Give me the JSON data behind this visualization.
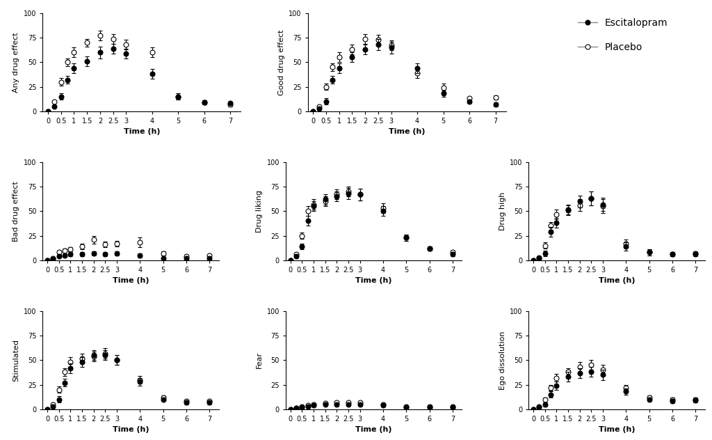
{
  "time": [
    0,
    0.25,
    0.5,
    0.75,
    1,
    1.5,
    2,
    2.5,
    3,
    4,
    5,
    6,
    7
  ],
  "panels": [
    {
      "ylabel": "Any drug effect",
      "escitalopram": [
        0,
        5,
        15,
        32,
        44,
        51,
        60,
        64,
        59,
        38,
        15,
        9,
        8
      ],
      "placebo": [
        0,
        10,
        30,
        50,
        60,
        70,
        77,
        74,
        68,
        60,
        15,
        9,
        7
      ],
      "esc_err": [
        0,
        1,
        3,
        4,
        5,
        5,
        6,
        5,
        5,
        5,
        3,
        2,
        2
      ],
      "plc_err": [
        0,
        1,
        4,
        4,
        5,
        4,
        5,
        5,
        5,
        5,
        3,
        2,
        2
      ],
      "ylim": [
        0,
        100
      ],
      "yticks": [
        0,
        25,
        50,
        75,
        100
      ]
    },
    {
      "ylabel": "Good drug effect",
      "escitalopram": [
        0,
        3,
        10,
        32,
        44,
        55,
        63,
        68,
        65,
        44,
        18,
        10,
        7
      ],
      "placebo": [
        0,
        5,
        25,
        45,
        55,
        63,
        74,
        73,
        67,
        39,
        24,
        13,
        14
      ],
      "esc_err": [
        0,
        1,
        3,
        4,
        5,
        5,
        5,
        6,
        6,
        5,
        3,
        2,
        2
      ],
      "plc_err": [
        0,
        1,
        3,
        4,
        5,
        5,
        5,
        5,
        5,
        5,
        4,
        2,
        2
      ],
      "ylim": [
        0,
        100
      ],
      "yticks": [
        0,
        25,
        50,
        75,
        100
      ]
    },
    {
      "ylabel": "Bad drug effect",
      "escitalopram": [
        0,
        1,
        4,
        5,
        6,
        6,
        7,
        6,
        7,
        5,
        2,
        2,
        2
      ],
      "placebo": [
        0,
        2,
        8,
        10,
        11,
        14,
        21,
        16,
        17,
        18,
        7,
        4,
        5
      ],
      "esc_err": [
        0,
        1,
        1,
        1,
        2,
        2,
        2,
        2,
        2,
        2,
        1,
        1,
        1
      ],
      "plc_err": [
        0,
        1,
        2,
        2,
        2,
        3,
        4,
        3,
        3,
        5,
        2,
        1,
        1
      ],
      "ylim": [
        0,
        100
      ],
      "yticks": [
        0,
        25,
        50,
        75,
        100
      ]
    },
    {
      "ylabel": "Drug liking",
      "escitalopram": [
        0,
        4,
        14,
        40,
        55,
        62,
        65,
        68,
        67,
        50,
        23,
        12,
        6
      ],
      "placebo": [
        0,
        6,
        25,
        50,
        57,
        60,
        67,
        70,
        67,
        53,
        23,
        12,
        8
      ],
      "esc_err": [
        0,
        1,
        3,
        5,
        5,
        5,
        5,
        6,
        6,
        5,
        3,
        2,
        2
      ],
      "plc_err": [
        0,
        1,
        3,
        5,
        5,
        5,
        5,
        5,
        6,
        5,
        3,
        2,
        2
      ],
      "ylim": [
        0,
        100
      ],
      "yticks": [
        0,
        25,
        50,
        75,
        100
      ]
    },
    {
      "ylabel": "Drug high",
      "escitalopram": [
        0,
        2,
        7,
        29,
        38,
        52,
        60,
        63,
        57,
        14,
        8,
        6,
        6
      ],
      "placebo": [
        0,
        3,
        15,
        35,
        47,
        51,
        56,
        63,
        55,
        17,
        8,
        6,
        7
      ],
      "esc_err": [
        0,
        1,
        3,
        5,
        5,
        5,
        6,
        7,
        7,
        4,
        3,
        2,
        2
      ],
      "plc_err": [
        0,
        1,
        3,
        4,
        5,
        5,
        6,
        7,
        7,
        4,
        3,
        2,
        2
      ],
      "ylim": [
        0,
        100
      ],
      "yticks": [
        0,
        25,
        50,
        75,
        100
      ]
    },
    {
      "ylabel": "Stimulated",
      "escitalopram": [
        0,
        3,
        10,
        27,
        42,
        48,
        55,
        55,
        50,
        28,
        10,
        7,
        7
      ],
      "placebo": [
        0,
        5,
        20,
        38,
        48,
        52,
        54,
        57,
        50,
        30,
        12,
        8,
        8
      ],
      "esc_err": [
        0,
        1,
        3,
        4,
        5,
        5,
        5,
        5,
        5,
        4,
        2,
        2,
        2
      ],
      "plc_err": [
        0,
        1,
        3,
        4,
        5,
        5,
        5,
        5,
        5,
        4,
        2,
        2,
        2
      ],
      "ylim": [
        0,
        100
      ],
      "yticks": [
        0,
        25,
        50,
        75,
        100
      ]
    },
    {
      "ylabel": "Fear",
      "escitalopram": [
        0,
        1,
        2,
        3,
        4,
        5,
        5,
        5,
        5,
        4,
        2,
        2,
        2
      ],
      "placebo": [
        0,
        1,
        3,
        4,
        5,
        6,
        7,
        7,
        7,
        5,
        3,
        3,
        3
      ],
      "esc_err": [
        0,
        0.5,
        1,
        1,
        1,
        1,
        1,
        1,
        1,
        1,
        1,
        1,
        1
      ],
      "plc_err": [
        0,
        0.5,
        1,
        1,
        1,
        1,
        1,
        1,
        1,
        1,
        1,
        1,
        1
      ],
      "ylim": [
        0,
        100
      ],
      "yticks": [
        0,
        25,
        50,
        75,
        100
      ]
    },
    {
      "ylabel": "Ego dissolution",
      "escitalopram": [
        0,
        2,
        5,
        15,
        24,
        33,
        37,
        38,
        35,
        18,
        10,
        8,
        9
      ],
      "placebo": [
        0,
        3,
        10,
        22,
        32,
        38,
        43,
        45,
        40,
        22,
        12,
        10,
        10
      ],
      "esc_err": [
        0,
        1,
        2,
        3,
        4,
        5,
        5,
        5,
        5,
        3,
        2,
        2,
        2
      ],
      "plc_err": [
        0,
        1,
        2,
        3,
        4,
        4,
        5,
        5,
        5,
        3,
        2,
        2,
        2
      ],
      "ylim": [
        0,
        100
      ],
      "yticks": [
        0,
        25,
        50,
        75,
        100
      ]
    }
  ],
  "esc_color": "#000000",
  "plc_color": "#000000",
  "esc_markerfacecolor": "#000000",
  "plc_markerfacecolor": "#ffffff",
  "line_color": "#888888",
  "xlabel": "Time (h)",
  "xticks": [
    0,
    0.5,
    1,
    1.5,
    2,
    2.5,
    3,
    4,
    5,
    6,
    7
  ],
  "xtick_labels": [
    "0",
    "0.5",
    "1",
    "1.5",
    "2",
    "2.5",
    "3",
    "4",
    "5",
    "6",
    "7"
  ],
  "legend_escitalopram": "Escitalopram",
  "legend_placebo": "Placebo",
  "markersize": 5,
  "linewidth": 1.0,
  "capsize": 2,
  "elinewidth": 0.8
}
